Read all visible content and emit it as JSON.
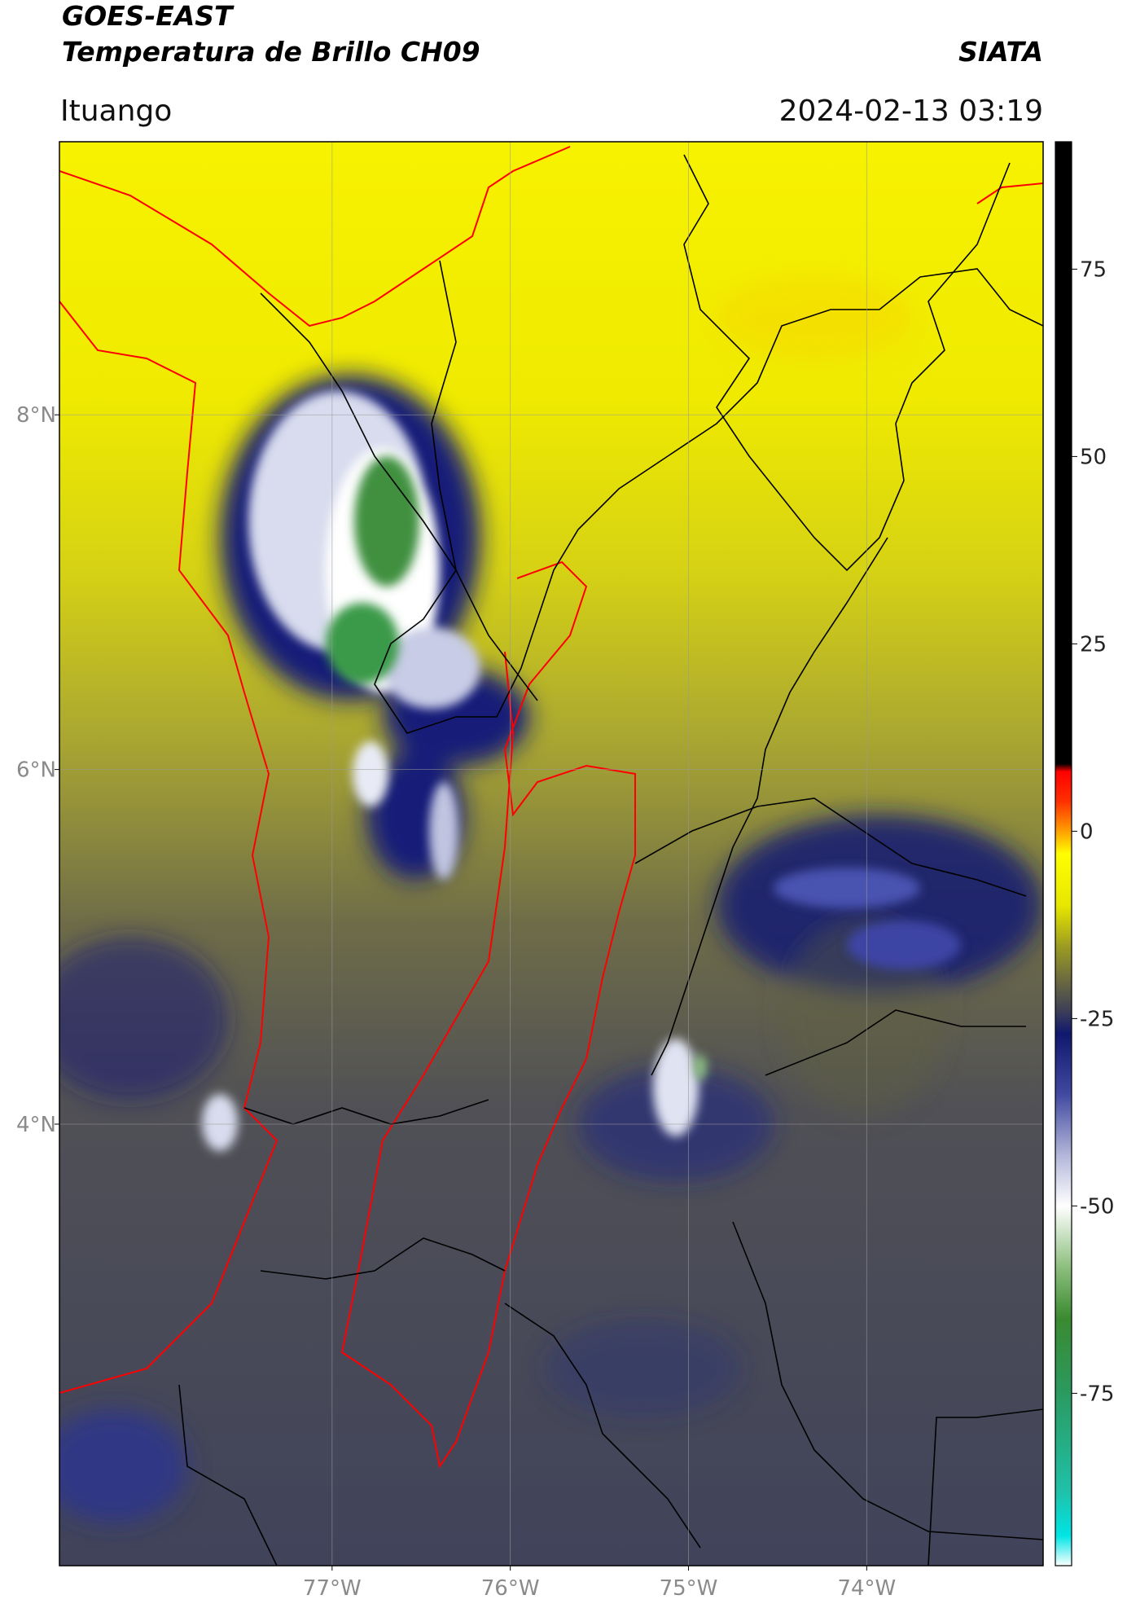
{
  "header": {
    "title_line1": "GOES-EAST",
    "title_line2": "Temperatura de Brillo CH09",
    "source": "SIATA",
    "location": "Ituango",
    "datetime": "2024-02-13 03:19"
  },
  "map": {
    "xlim": [
      -78.53,
      -73.01
    ],
    "ylim": [
      1.51,
      9.54
    ],
    "xticks": [
      {
        "value": -77,
        "label": "77°W"
      },
      {
        "value": -76,
        "label": "76°W"
      },
      {
        "value": -75,
        "label": "75°W"
      },
      {
        "value": -74,
        "label": "74°W"
      }
    ],
    "yticks": [
      {
        "value": 8,
        "label": "8°N"
      },
      {
        "value": 6,
        "label": "6°N"
      },
      {
        "value": 4,
        "label": "4°N"
      }
    ]
  },
  "colorbar": {
    "lim": [
      -98,
      92
    ],
    "ticks": [
      75,
      50,
      25,
      0,
      -25,
      -50,
      -75
    ],
    "colormap": [
      {
        "value": -98,
        "color": "#ffffff"
      },
      {
        "value": -94,
        "color": "#00e5e5"
      },
      {
        "value": -88,
        "color": "#20c0a8"
      },
      {
        "value": -75,
        "color": "#2a9a60"
      },
      {
        "value": -65,
        "color": "#3a8a30"
      },
      {
        "value": -58,
        "color": "#8fc080"
      },
      {
        "value": -50,
        "color": "#ffffff"
      },
      {
        "value": -43,
        "color": "#b0b4d8"
      },
      {
        "value": -35,
        "color": "#4048a0"
      },
      {
        "value": -27,
        "color": "#10186e"
      },
      {
        "value": -24,
        "color": "#3c3e58"
      },
      {
        "value": -20,
        "color": "#6a6840"
      },
      {
        "value": -15,
        "color": "#a0a020"
      },
      {
        "value": -10,
        "color": "#e6e600"
      },
      {
        "value": -3,
        "color": "#ffff00"
      },
      {
        "value": 0,
        "color": "#ffa000"
      },
      {
        "value": 4,
        "color": "#ff3000"
      },
      {
        "value": 8,
        "color": "#ff0000"
      },
      {
        "value": 9,
        "color": "#000000"
      },
      {
        "value": 92,
        "color": "#000000"
      }
    ]
  }
}
